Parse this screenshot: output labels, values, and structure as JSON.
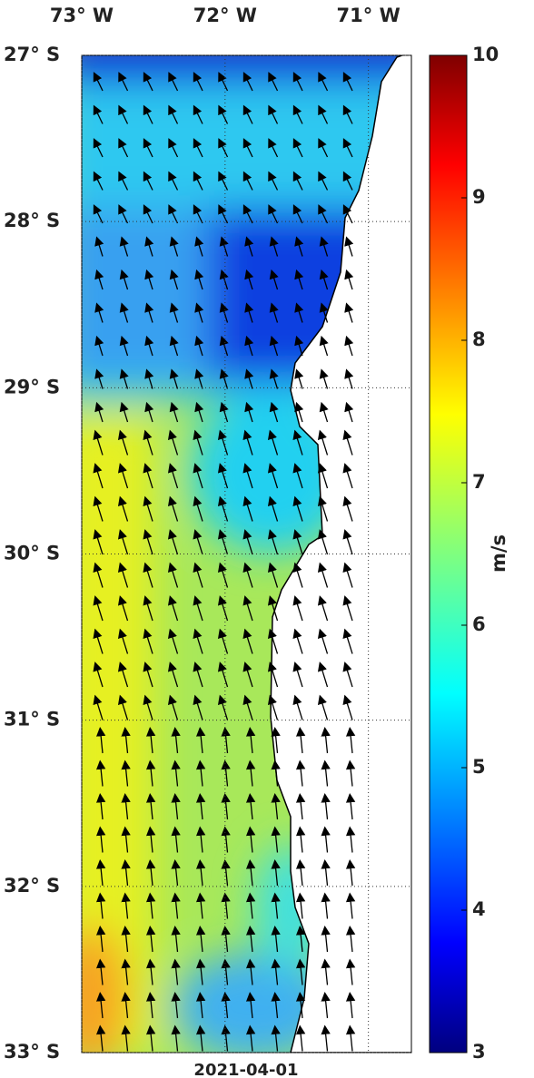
{
  "map": {
    "lon_ticks": [
      {
        "value": -73,
        "label": "73° W"
      },
      {
        "value": -72,
        "label": "72° W"
      },
      {
        "value": -71,
        "label": "71° W"
      }
    ],
    "lat_ticks": [
      {
        "value": -27,
        "label": "27° S"
      },
      {
        "value": -28,
        "label": "28° S"
      },
      {
        "value": -29,
        "label": "29° S"
      },
      {
        "value": -30,
        "label": "30° S"
      },
      {
        "value": -31,
        "label": "31° S"
      },
      {
        "value": -32,
        "label": "32° S"
      },
      {
        "value": -33,
        "label": "33° S"
      }
    ],
    "xlim": [
      -73,
      -70.7
    ],
    "ylim": [
      -33,
      -27
    ],
    "date": "2021-04-01",
    "colorbar": {
      "label": "m/s",
      "lim": [
        3,
        10
      ],
      "ticks": [
        3,
        4,
        5,
        6,
        7,
        8,
        9,
        10
      ]
    }
  }
}
